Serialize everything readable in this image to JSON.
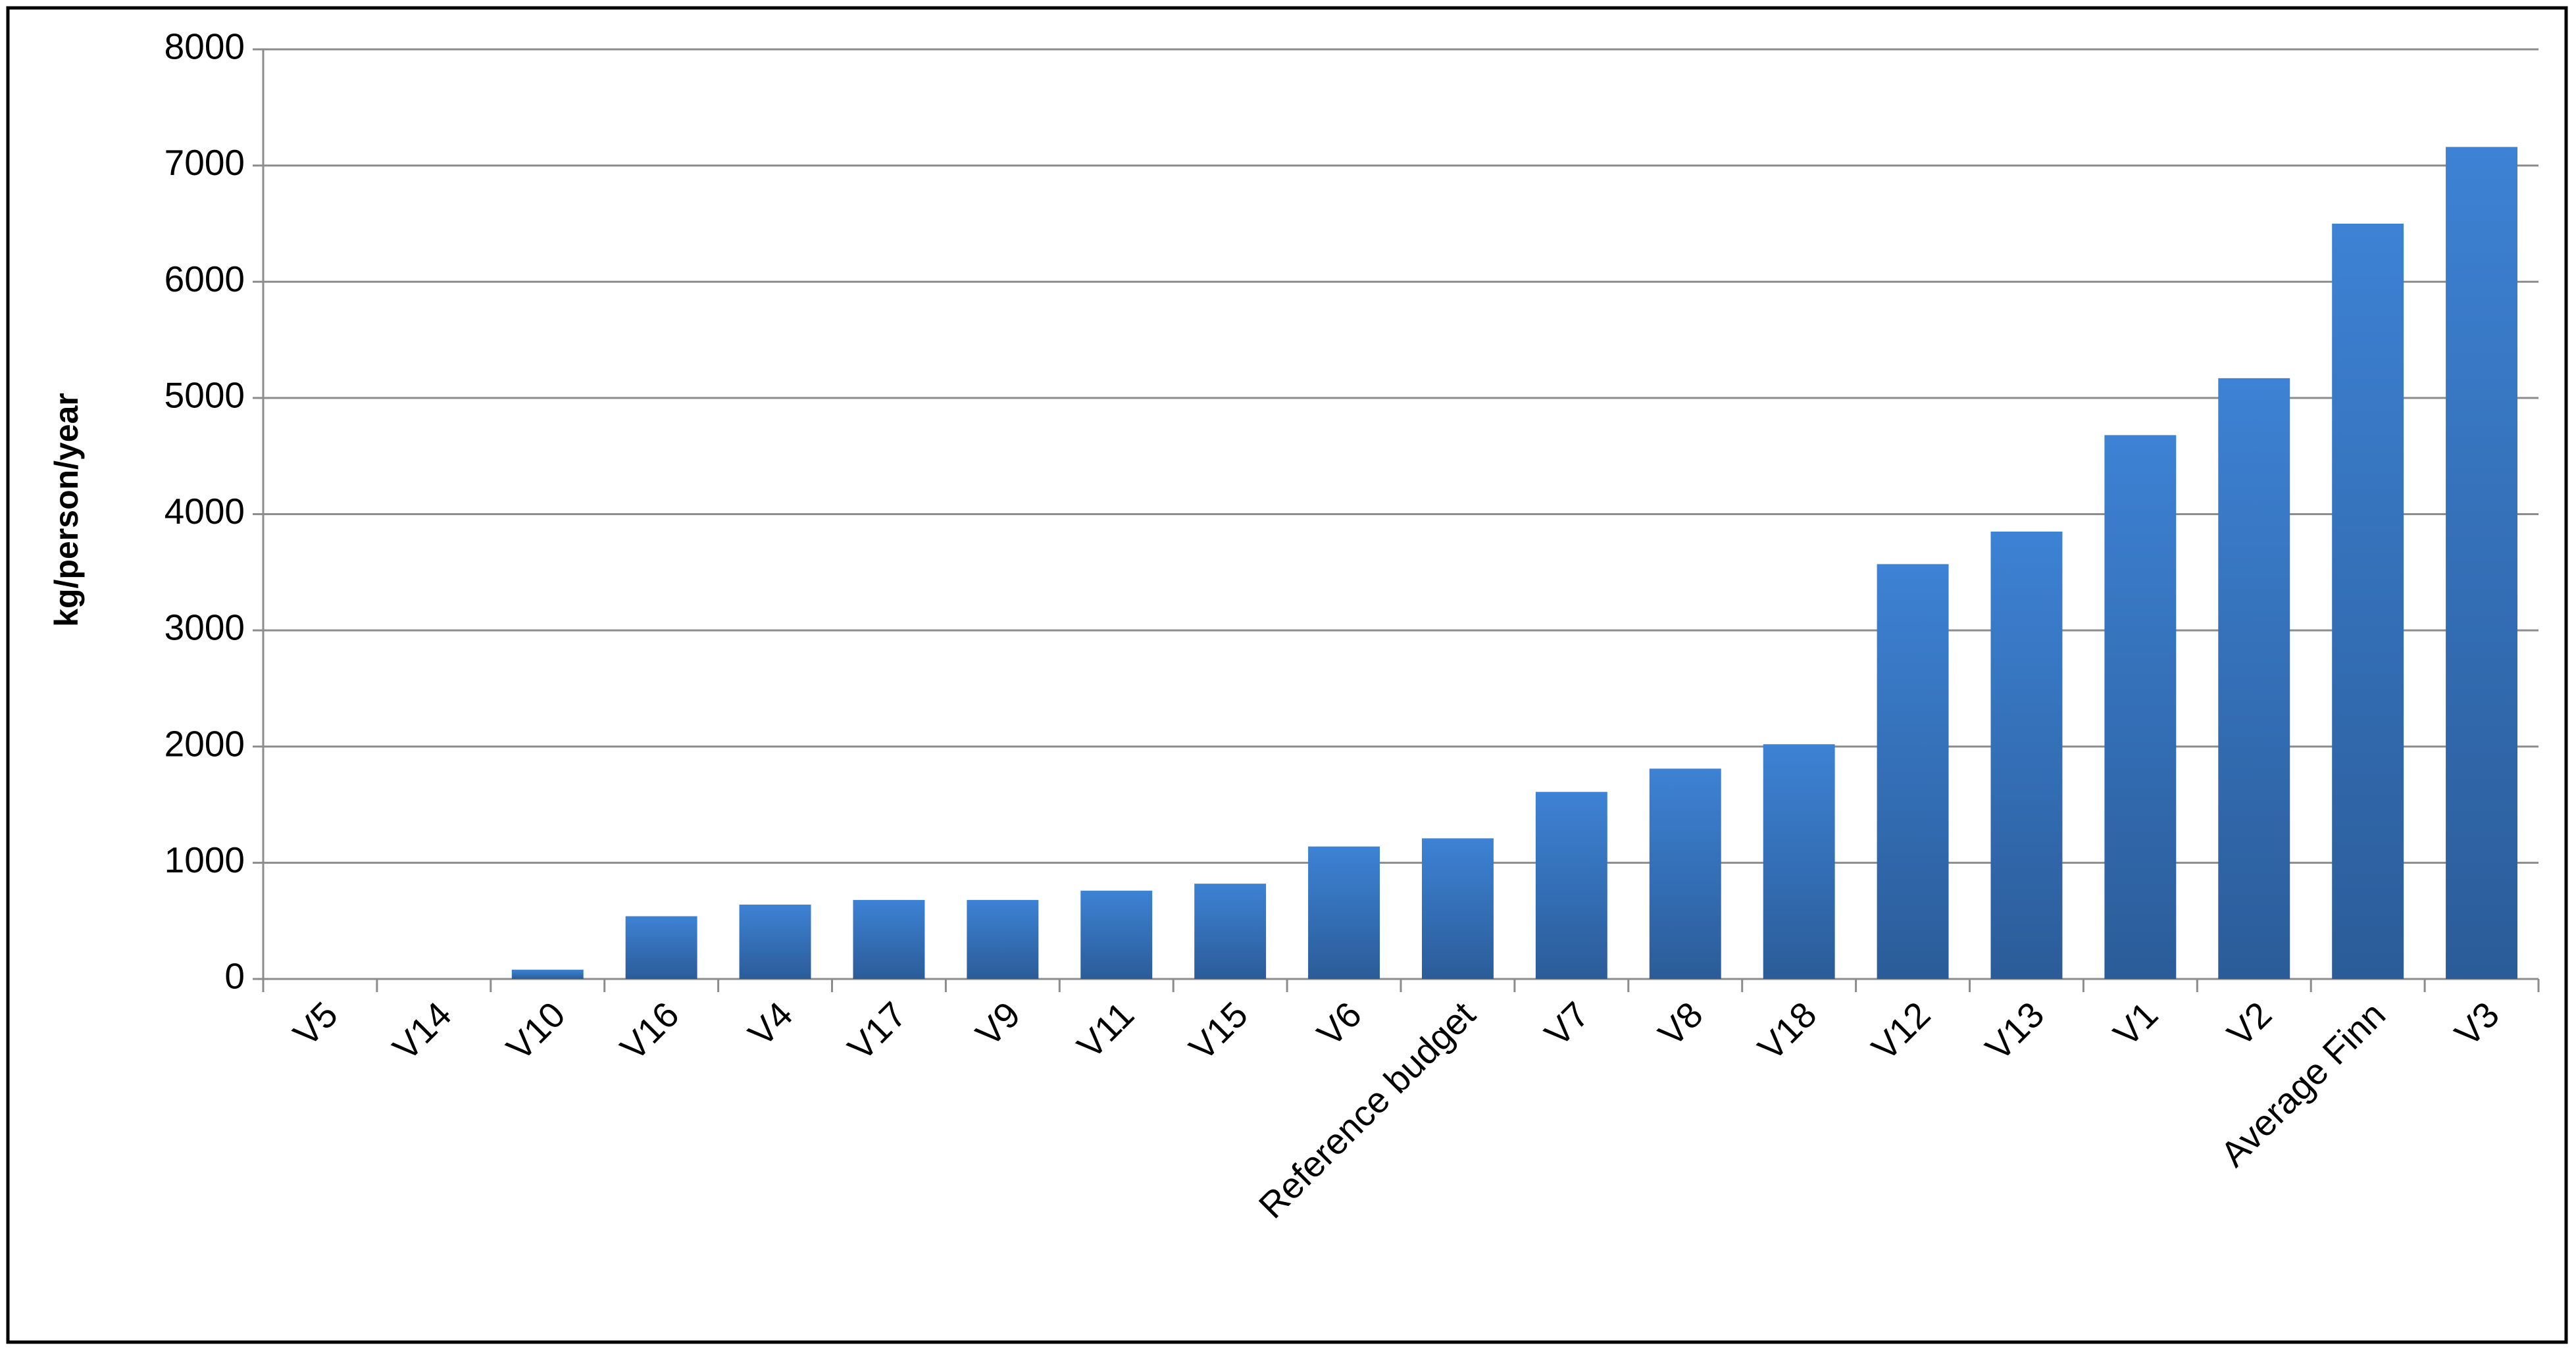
{
  "chart_data": {
    "type": "bar",
    "y_label": "kg/person/year",
    "categories": [
      "V5",
      "V14",
      "V10",
      "V16",
      "V4",
      "V17",
      "V9",
      "V11",
      "V15",
      "V6",
      "Reference budget",
      "V7",
      "V8",
      "V18",
      "V12",
      "V13",
      "V1",
      "V2",
      "Average Finn",
      "V3"
    ],
    "values": [
      0,
      0,
      80,
      540,
      640,
      680,
      680,
      760,
      820,
      1140,
      1210,
      1610,
      1810,
      2020,
      3570,
      3850,
      4680,
      5170,
      6500,
      7160
    ],
    "color": "#3a7dd0",
    "ylim": [
      0,
      8000
    ],
    "yticks": [
      0,
      1000,
      2000,
      3000,
      4000,
      5000,
      6000,
      7000,
      8000
    ],
    "grid": true
  }
}
